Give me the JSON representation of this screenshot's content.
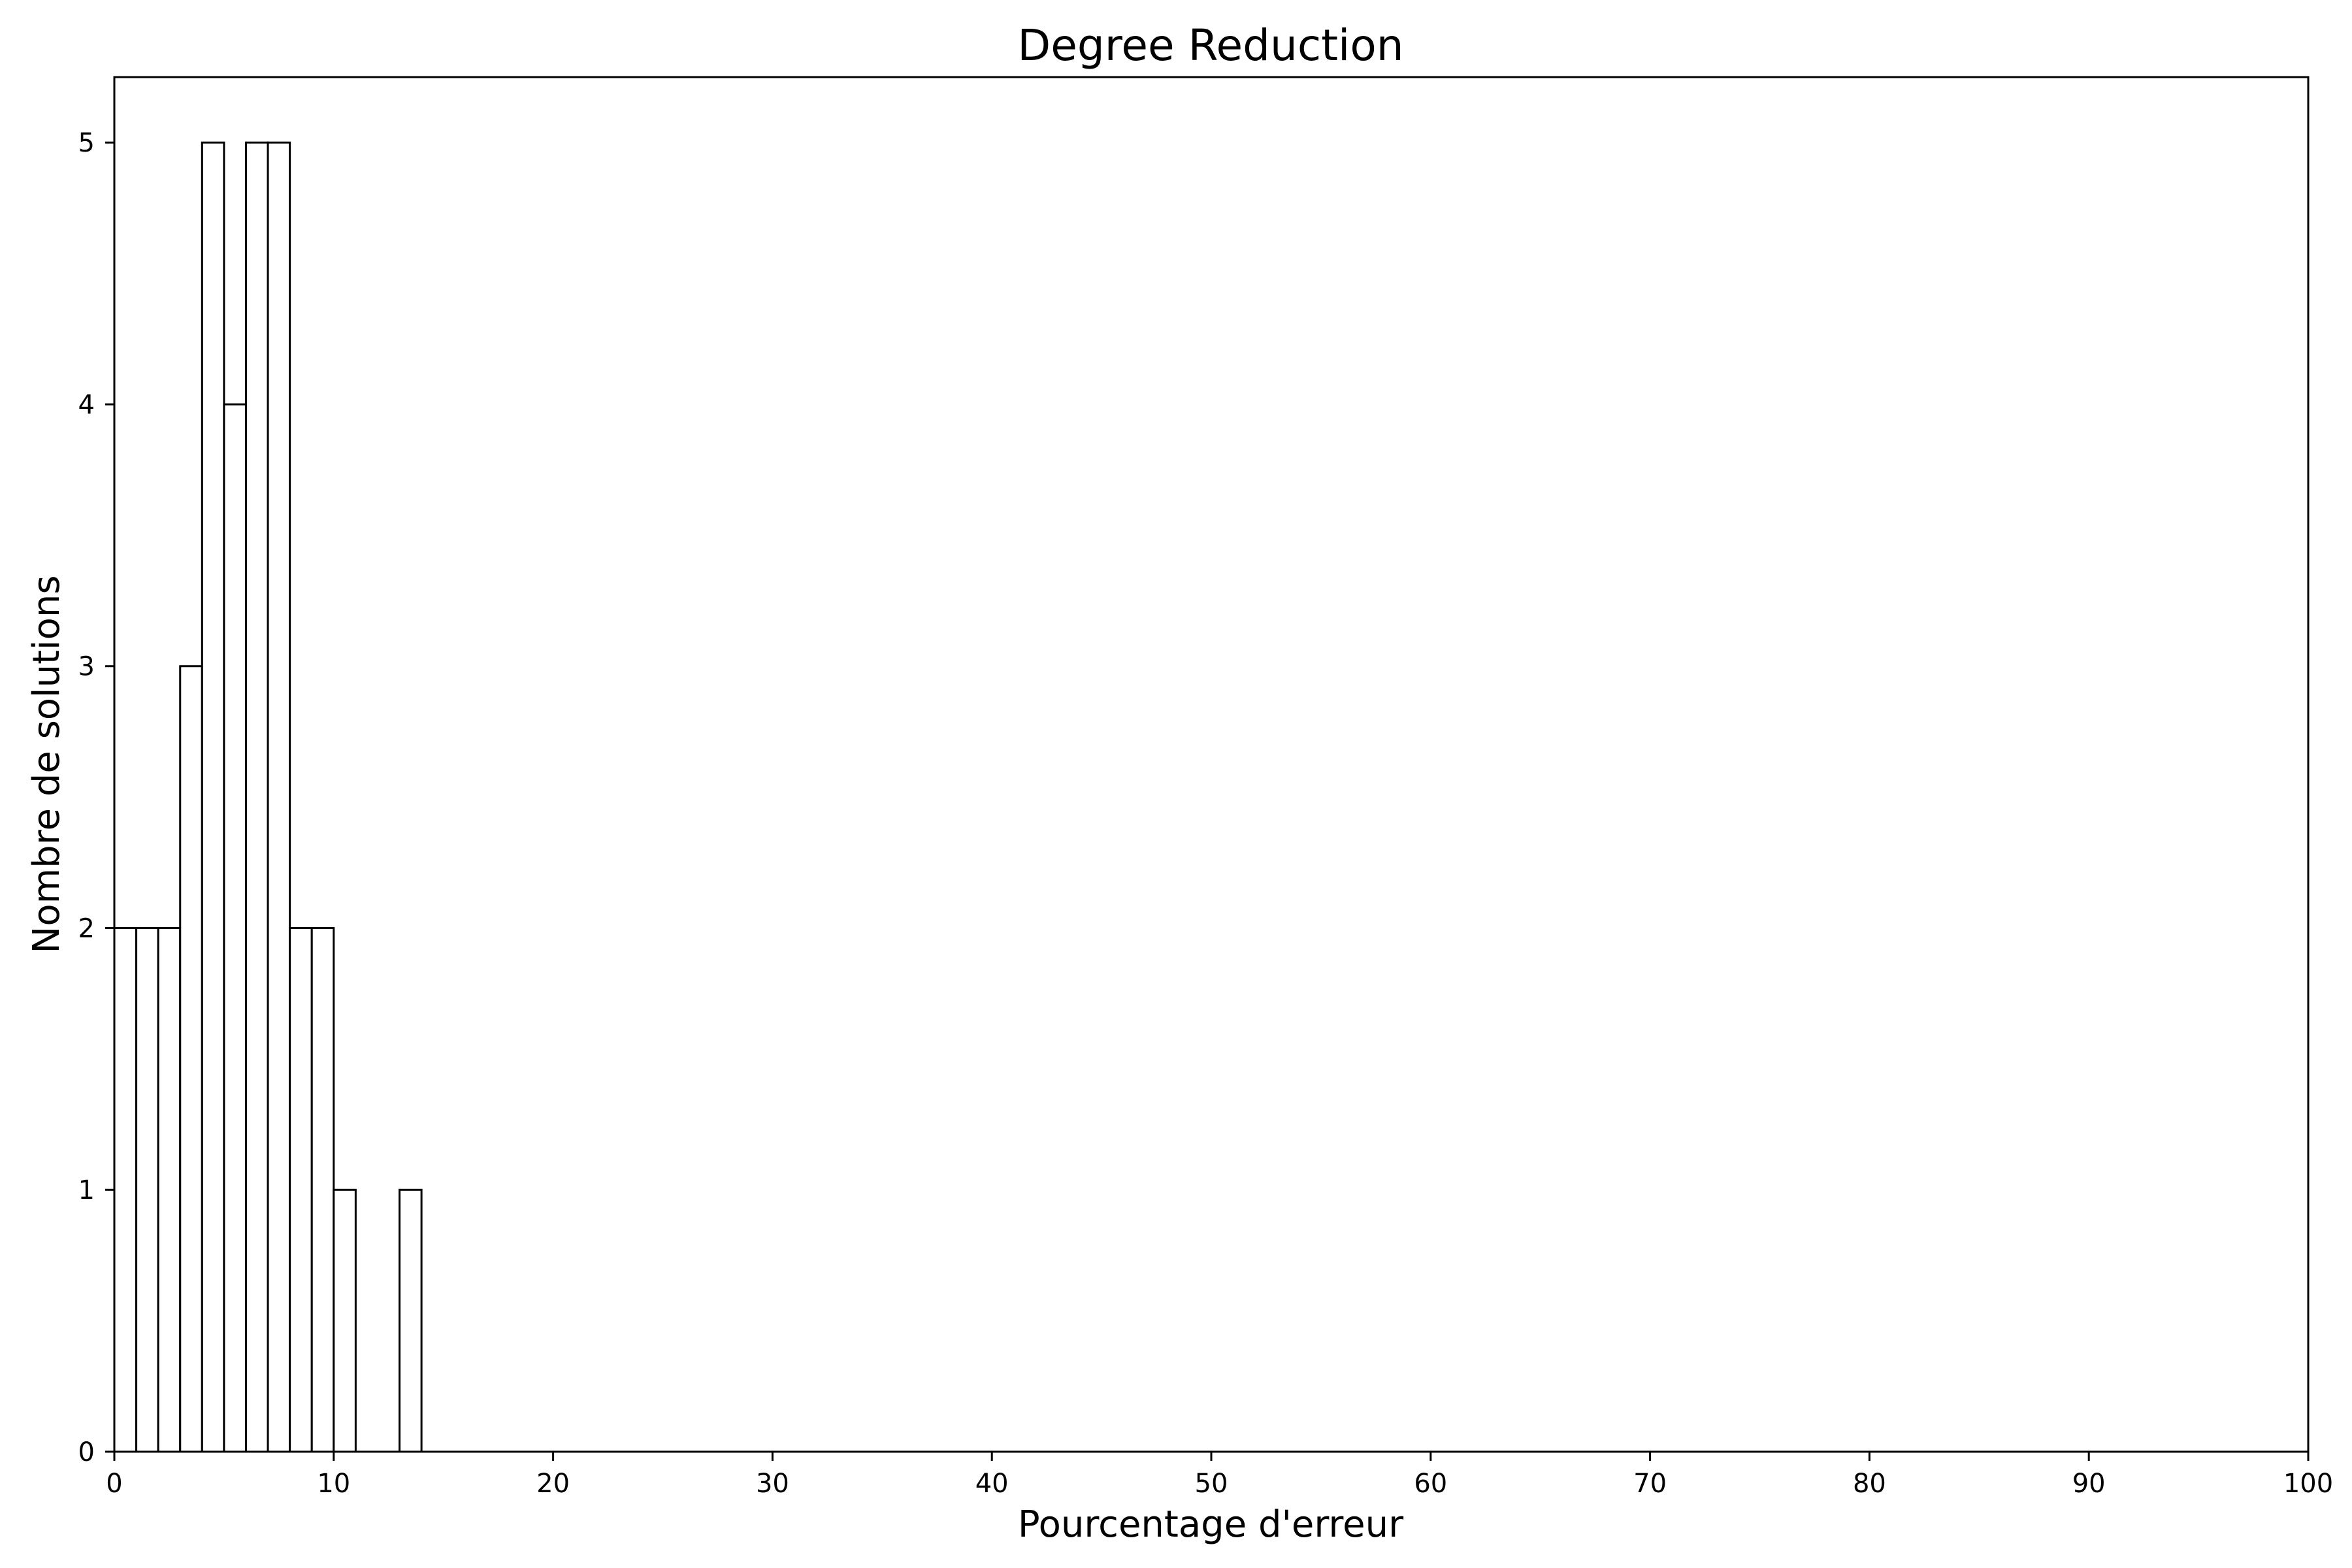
{
  "chart_data": {
    "type": "bar",
    "title": "Degree Reduction",
    "xlabel": "Pourcentage d'erreur",
    "ylabel": "Nombre de solutions",
    "xlim": [
      0,
      100
    ],
    "ylim": [
      0,
      5.25
    ],
    "x_ticks": [
      "0",
      "10",
      "20",
      "30",
      "40",
      "50",
      "60",
      "70",
      "80",
      "90",
      "100"
    ],
    "y_ticks": [
      "0",
      "1",
      "2",
      "3",
      "4",
      "5"
    ],
    "bin_width": 1,
    "bins": [
      {
        "start": 0,
        "count": 2
      },
      {
        "start": 1,
        "count": 2
      },
      {
        "start": 2,
        "count": 2
      },
      {
        "start": 3,
        "count": 3
      },
      {
        "start": 4,
        "count": 5
      },
      {
        "start": 5,
        "count": 4
      },
      {
        "start": 6,
        "count": 5
      },
      {
        "start": 7,
        "count": 5
      },
      {
        "start": 8,
        "count": 2
      },
      {
        "start": 9,
        "count": 2
      },
      {
        "start": 10,
        "count": 1
      },
      {
        "start": 13,
        "count": 1
      }
    ],
    "bar_fill": "#ffffff",
    "bar_edge": "#000000",
    "grid": false,
    "legend": "none"
  }
}
